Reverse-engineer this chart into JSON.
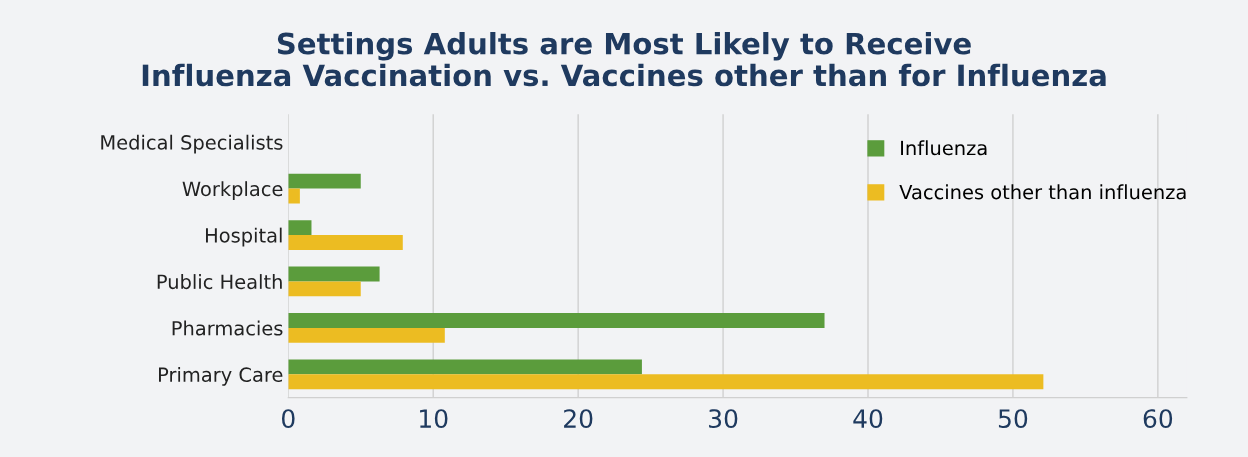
{
  "chart_data": {
    "type": "bar",
    "orientation": "horizontal",
    "title": "Settings Adults are Most Likely to Receive\nInfluenza Vaccination vs. Vaccines other than for Influenza",
    "categories": [
      "Medical Specialists",
      "Workplace",
      "Hospital",
      "Public Health",
      "Pharmacies",
      "Primary Care"
    ],
    "series": [
      {
        "name": "Influenza",
        "color": "#5b9c3c",
        "values": [
          0,
          5.0,
          1.6,
          6.3,
          37.0,
          24.4
        ]
      },
      {
        "name": "Vaccines other than influenza",
        "color": "#ecbc22",
        "values": [
          0,
          0.8,
          7.9,
          5.0,
          10.8,
          52.1
        ]
      }
    ],
    "xlim": [
      0,
      62
    ],
    "xticks": [
      0,
      10,
      20,
      30,
      40,
      50,
      60
    ],
    "grid": "x",
    "legend": "top right"
  }
}
